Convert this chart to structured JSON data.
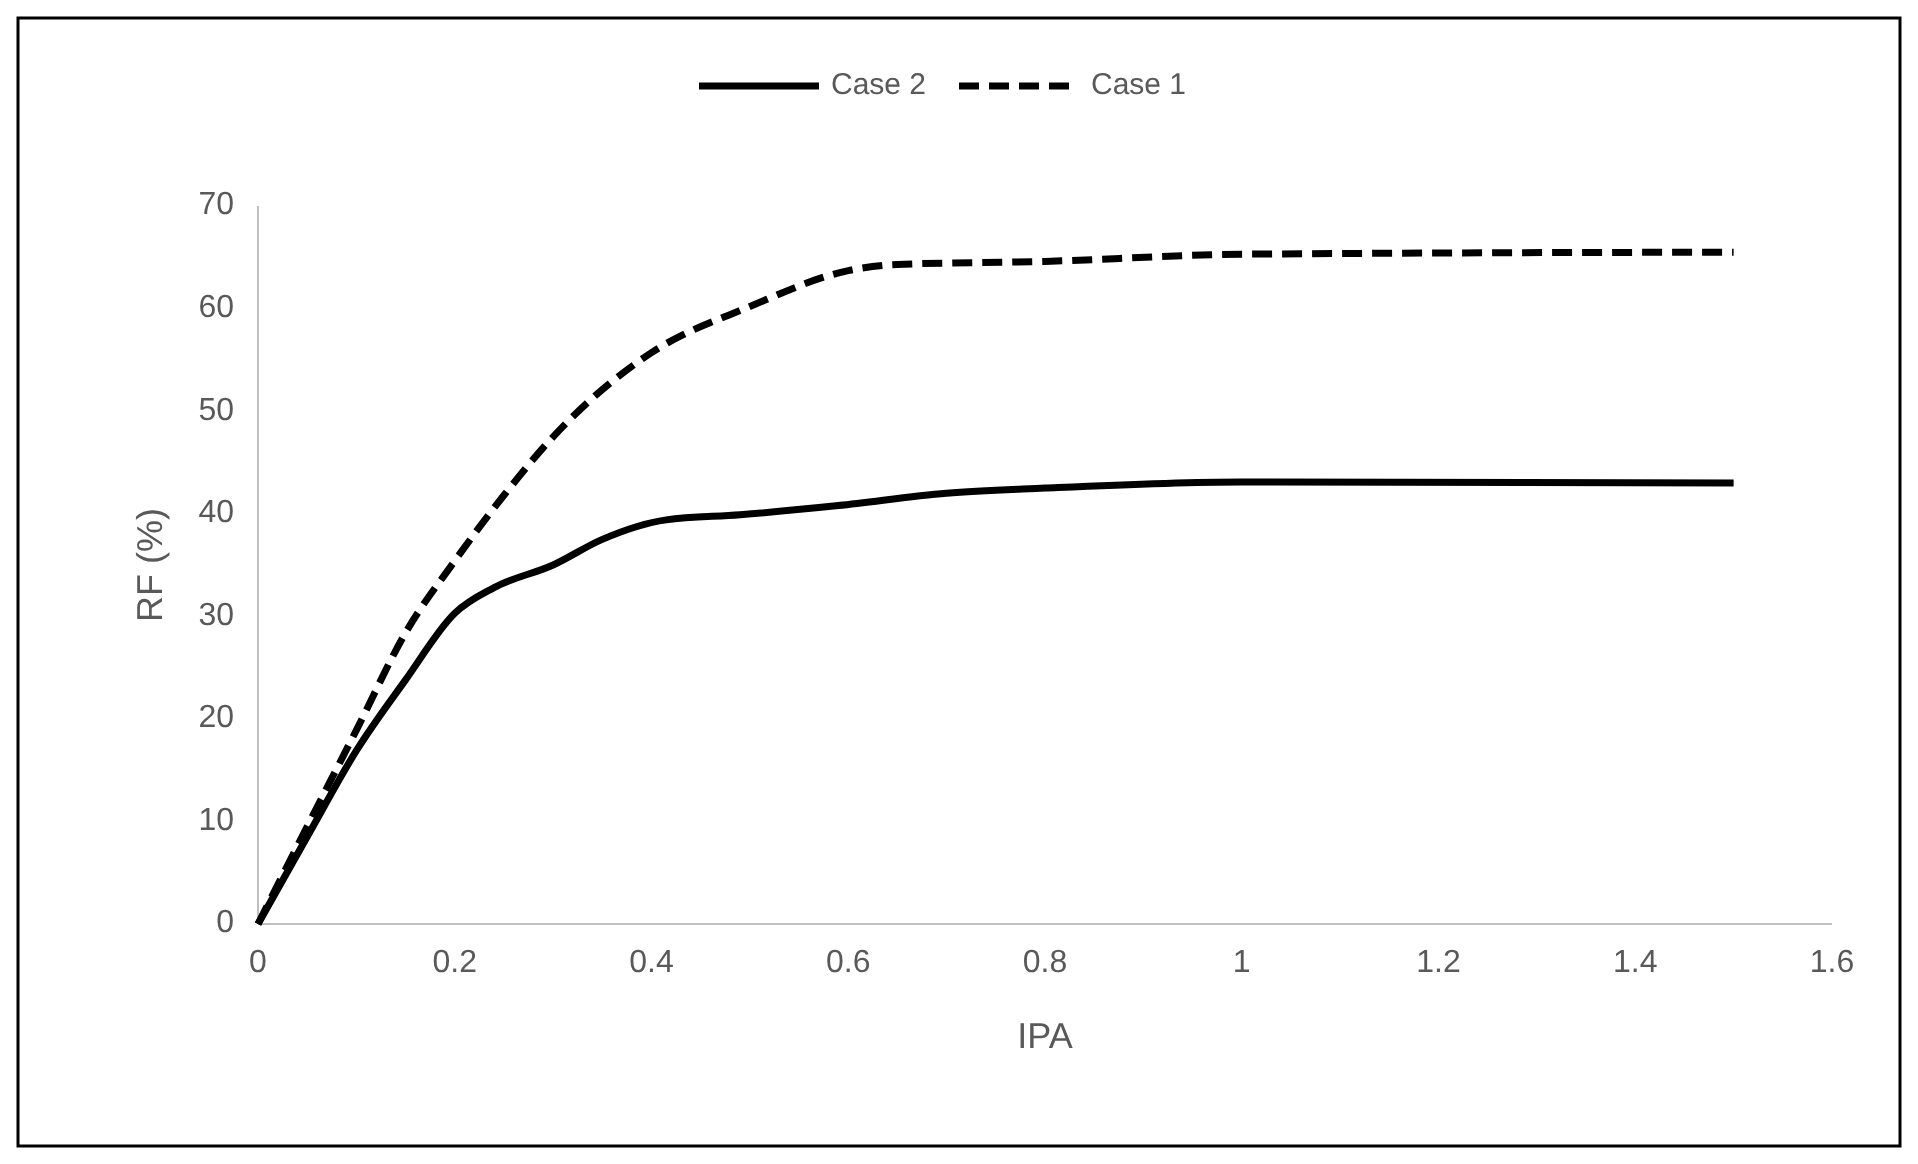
{
  "chart_data": {
    "type": "line",
    "xlabel": "IPA",
    "ylabel": "RF (%)",
    "xlim": [
      0,
      1.6
    ],
    "xticks": [
      0,
      0.2,
      0.4,
      0.6,
      0.8,
      1,
      1.2,
      1.4,
      1.6
    ],
    "ylim": [
      0,
      70
    ],
    "yticks": [
      0,
      10,
      20,
      30,
      40,
      50,
      60,
      70
    ],
    "grid": false,
    "legend": "top",
    "marker": "none",
    "series": [
      {
        "name": "Case 2",
        "color": "#000000",
        "line_style": "solid",
        "x": [
          0,
          0.05,
          0.1,
          0.15,
          0.2,
          0.24,
          0.3,
          0.35,
          0.415,
          0.49,
          0.59,
          0.7,
          0.8,
          1,
          1.5
        ],
        "values": [
          0,
          8.5,
          16.9,
          23.8,
          30.3,
          32.8,
          35,
          37.5,
          39.4,
          39.9,
          40.8,
          42,
          42.5,
          43.1,
          43
        ]
      },
      {
        "name": "Case 1",
        "color": "#000000",
        "line_style": "dashed",
        "x": [
          0,
          0.05,
          0.1,
          0.15,
          0.2,
          0.25,
          0.3,
          0.4,
          0.5,
          0.6,
          0.65,
          0.8,
          1,
          1.5
        ],
        "values": [
          0,
          9.5,
          18.9,
          28.4,
          35.4,
          41.8,
          47.5,
          55.7,
          60.2,
          63.7,
          64.3,
          64.6,
          65.3,
          65.5
        ]
      }
    ]
  }
}
